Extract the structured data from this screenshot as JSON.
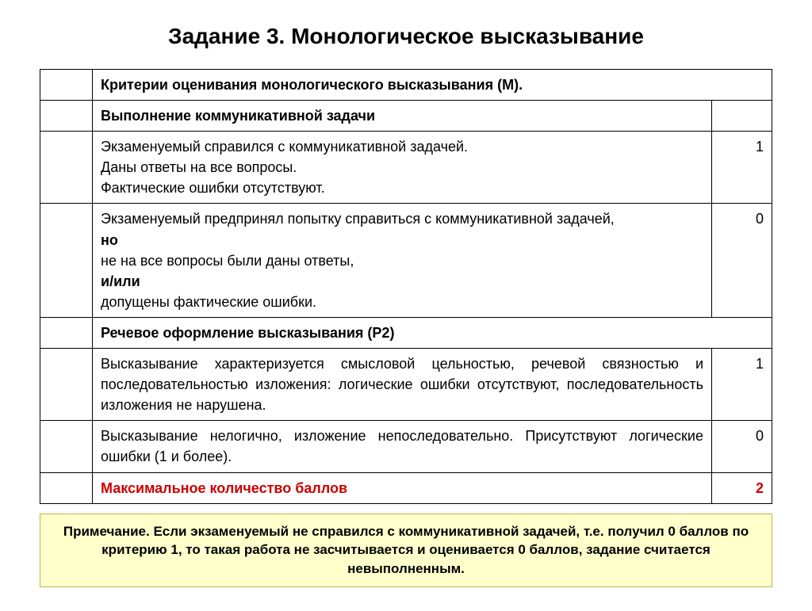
{
  "title": "Задание 3. Монологическое высказывание",
  "table": {
    "header1": "Критерии оценивания монологического высказывания (М).",
    "header2": "Выполнение коммуникативной задачи",
    "row1_text": "Экзаменуемый справился с коммуникативной задачей.\nДаны ответы на все вопросы.\nФактические ошибки отсутствуют.",
    "row1_score": "1",
    "row2_l1": "Экзаменуемый предпринял попытку справиться с коммуникативной задачей,",
    "row2_but": "но",
    "row2_l2": "не на все вопросы были даны ответы,",
    "row2_andor": "и/или",
    "row2_l3": "допущены фактические ошибки.",
    "row2_score": "0",
    "header3": "Речевое оформление высказывания (Р2)",
    "row3_text": "Высказывание характеризуется смысловой цельностью, речевой связностью и последовательностью изложения: логические ошибки отсутствуют, последовательность изложения не нарушена.",
    "row3_score": "1",
    "row4_text": "Высказывание нелогично, изложение непоследовательно. Присутствуют логические ошибки (1 и более).",
    "row4_score": "0",
    "max_label": "Максимальное количество баллов",
    "max_score": "2"
  },
  "note": "Примечание. Если экзаменуемый не справился с коммуникативной задачей, т.е. получил 0 баллов по критерию 1, то такая работа не засчитывается и оценивается 0 баллов, задание считается невыполненным.",
  "colors": {
    "border": "#000000",
    "text": "#000000",
    "accent": "#cc0000",
    "note_bg": "#ffffcc",
    "note_border": "#b8b84a",
    "background": "#ffffff"
  },
  "fonts": {
    "title_size_pt": 21,
    "body_size_pt": 14,
    "note_size_pt": 13,
    "family": "Arial"
  }
}
